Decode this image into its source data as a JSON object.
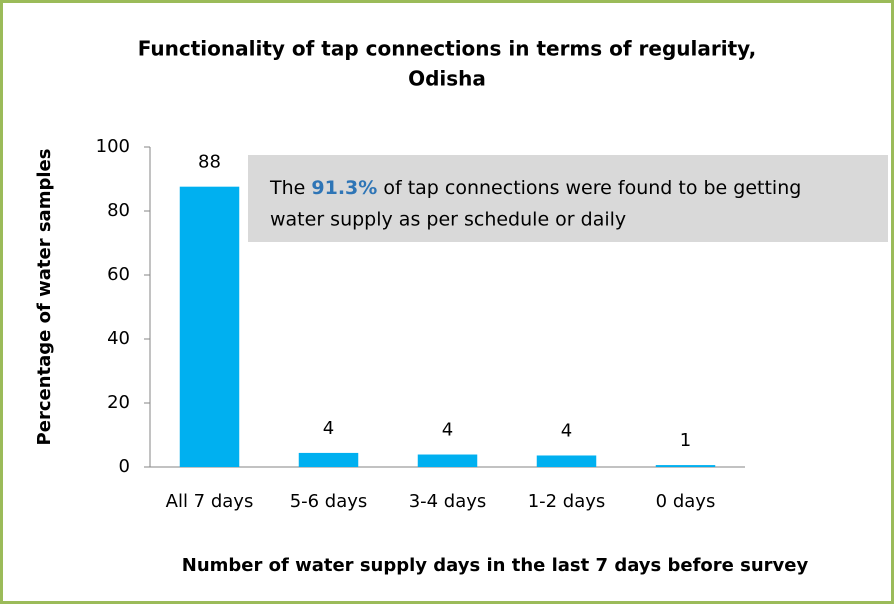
{
  "chart_data": {
    "type": "bar",
    "title": [
      "Functionality of tap connections in terms of regularity,",
      "Odisha"
    ],
    "y_label": "Percentage of water samples",
    "x_label": "Number of water supply days in the last 7 days before survey",
    "categories": [
      "All 7 days",
      "5-6 days",
      "3-4 days",
      "1-2 days",
      "0 days"
    ],
    "values": [
      87.6,
      4.4,
      3.9,
      3.6,
      0.6
    ],
    "value_labels": [
      "88",
      "4",
      "4",
      "4",
      "1"
    ],
    "color": "#00b0f0",
    "ylim": [
      0,
      100
    ],
    "yticks": [
      0,
      20,
      40,
      60,
      80,
      100
    ],
    "annotation": {
      "prefix": "The ",
      "highlight": "91.3%",
      "line1": " of tap connections were found to be getting",
      "line2": "water supply as per schedule or daily"
    }
  }
}
